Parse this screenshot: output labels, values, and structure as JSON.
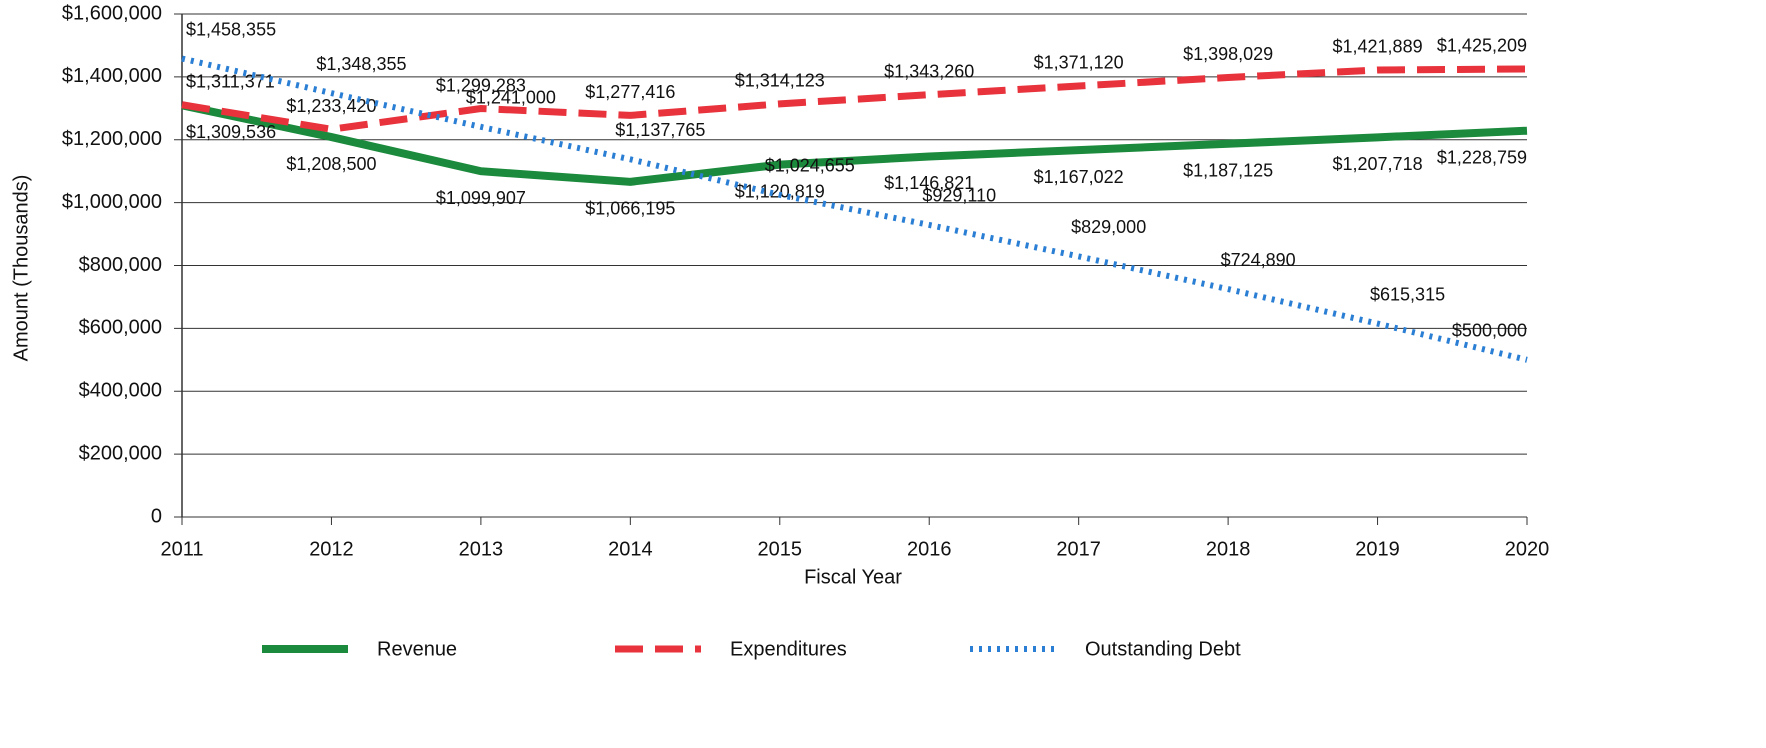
{
  "chart_data": {
    "type": "line",
    "x": [
      2011,
      2012,
      2013,
      2014,
      2015,
      2016,
      2017,
      2018,
      2019,
      2020
    ],
    "xlim": [
      2011,
      2020
    ],
    "x_label": "Fiscal Year",
    "y_label": "Amount (Thousands)",
    "ylim": [
      0,
      1600000
    ],
    "yticks": [
      0,
      {
        "value": 200000,
        "label": "$200,000"
      },
      {
        "value": 400000,
        "label": "$400,000"
      },
      {
        "value": 600000,
        "label": "$600,000"
      },
      {
        "value": 800000,
        "label": "$800,000"
      },
      {
        "value": 1000000,
        "label": "$1,000,000"
      },
      {
        "value": 1200000,
        "label": "$1,200,000"
      },
      {
        "value": 1400000,
        "label": "$1,400,000"
      },
      {
        "value": 1600000,
        "label": "$1,600,000"
      }
    ],
    "grid": true,
    "legend": "bottom",
    "series": [
      {
        "name": "Revenue",
        "color": "#1b8a3c",
        "style": "solid",
        "values": [
          1309536,
          1208500,
          1099907,
          1066195,
          1120819,
          1146821,
          1167022,
          1187125,
          1207718,
          1228759
        ],
        "value_labels": [
          "$1,309,536",
          "$1,208,500",
          "$1,099,907",
          "$1,066,195",
          "$1,120,819",
          "$1,146,821",
          "$1,167,022",
          "$1,187,125",
          "$1,207,718",
          "$1,228,759"
        ]
      },
      {
        "name": "Expenditures",
        "color": "#e8323c",
        "style": "dashed",
        "values": [
          1311371,
          1233420,
          1299283,
          1277416,
          1314123,
          1343260,
          1371120,
          1398029,
          1421889,
          1425209
        ],
        "value_labels": [
          "$1,311,371",
          "$1,233,420",
          "$1,299,283",
          "$1,277,416",
          "$1,314,123",
          "$1,343,260",
          "$1,371,120",
          "$1,398,029",
          "$1,421,889",
          "$1,425,209"
        ]
      },
      {
        "name": "Outstanding Debt",
        "color": "#2a7fd4",
        "style": "dotted",
        "values": [
          1458355,
          1348355,
          1241000,
          1137765,
          1024655,
          929110,
          829000,
          724890,
          615315,
          500000
        ],
        "value_labels": [
          "$1,458,355",
          "$1,348,355",
          "$1,241,000",
          "$1,137,765",
          "$1,024,655",
          "$929,110",
          "$829,000",
          "$724,890",
          "$615,315",
          "$500,000"
        ]
      }
    ]
  }
}
